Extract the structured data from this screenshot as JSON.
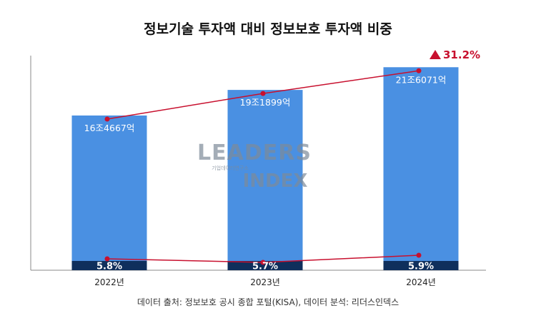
{
  "title": "정보기술 투자액 대비 정보보호 투자액 비중",
  "source": "데이터 출처: 정보보호 공시 종합 포털(KISA), 데이터 분석: 리더스인덱스",
  "colors": {
    "bar": "#4a90e2",
    "bar_bottom": "#0f2f5c",
    "line": "#c8102e",
    "axis": "#888888"
  },
  "watermark": {
    "line1": "LEADERS",
    "line2": "기업데이터연구소",
    "line3": "INDEX"
  },
  "chart_data": {
    "type": "bar",
    "title": "정보기술 투자액 대비 정보보호 투자액 비중",
    "categories": [
      "2022년",
      "2023년",
      "2024년"
    ],
    "series": [
      {
        "name": "정보기술 투자액",
        "values": [
          164667,
          191899,
          216071
        ],
        "labels": [
          "16조4667억",
          "19조1899억",
          "21조6071억"
        ]
      },
      {
        "name": "정보보호 투자액 비중",
        "values": [
          5.8,
          5.7,
          5.9
        ],
        "labels": [
          "5.8%",
          "5.7%",
          "5.9%"
        ]
      }
    ],
    "growth_label": "31.2%",
    "xlabel": "",
    "ylabel": "",
    "ylim": [
      0,
      236000
    ]
  }
}
